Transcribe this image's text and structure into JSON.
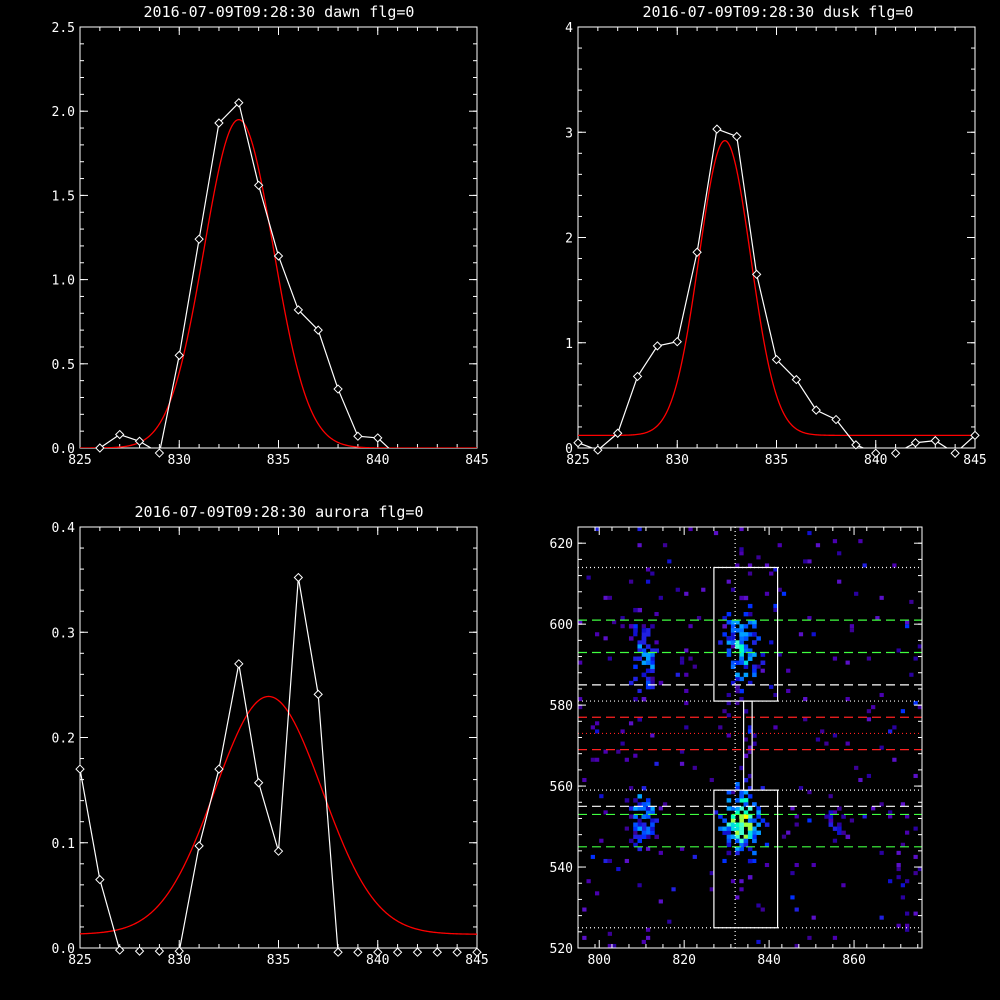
{
  "chart_data": [
    {
      "type": "line",
      "title": "2016-07-09T09:28:30 dawn flg=0",
      "xlim": [
        825,
        845
      ],
      "ylim": [
        0,
        2.5
      ],
      "xticks": [
        "825",
        "830",
        "835",
        "840",
        "845"
      ],
      "yticks": [
        "0.0",
        "0.5",
        "1.0",
        "1.5",
        "2.0",
        "2.5"
      ],
      "series": [
        {
          "style": "data",
          "color": "#ffffff",
          "x": [
            825,
            826,
            827,
            828,
            829,
            830,
            831,
            832,
            833,
            834,
            835,
            836,
            837,
            838,
            839,
            840,
            841,
            842,
            843,
            844,
            845
          ],
          "y": [
            -0.05,
            0.0,
            0.08,
            0.04,
            -0.03,
            0.55,
            1.24,
            1.93,
            2.05,
            1.56,
            1.14,
            0.82,
            0.7,
            0.35,
            0.07,
            0.06,
            -0.05,
            -0.08,
            -0.1,
            -0.05,
            -0.1
          ]
        },
        {
          "style": "fit",
          "color": "#ff0000",
          "model": "gaussian",
          "amplitude": 1.95,
          "center": 833.0,
          "sigma": 1.75,
          "baseline": 0.0
        }
      ]
    },
    {
      "type": "line",
      "title": "2016-07-09T09:28:30 dusk flg=0",
      "xlim": [
        825,
        845
      ],
      "ylim": [
        0,
        4
      ],
      "xticks": [
        "825",
        "830",
        "835",
        "840",
        "845"
      ],
      "yticks": [
        "0",
        "1",
        "2",
        "3",
        "4"
      ],
      "series": [
        {
          "style": "data",
          "color": "#ffffff",
          "x": [
            825,
            826,
            827,
            828,
            829,
            830,
            831,
            832,
            833,
            834,
            835,
            836,
            837,
            838,
            839,
            840,
            841,
            842,
            843,
            844,
            845
          ],
          "y": [
            0.05,
            -0.02,
            0.14,
            0.68,
            0.97,
            1.01,
            1.86,
            3.03,
            2.96,
            1.65,
            0.84,
            0.65,
            0.36,
            0.27,
            0.03,
            -0.05,
            -0.05,
            0.05,
            0.07,
            -0.05,
            0.12
          ]
        },
        {
          "style": "fit",
          "color": "#ff0000",
          "model": "gaussian",
          "amplitude": 2.8,
          "center": 832.4,
          "sigma": 1.3,
          "baseline": 0.12
        }
      ]
    },
    {
      "type": "line",
      "title": "2016-07-09T09:28:30 aurora flg=0",
      "xlim": [
        825,
        845
      ],
      "ylim": [
        0,
        0.4
      ],
      "xticks": [
        "825",
        "830",
        "835",
        "840",
        "845"
      ],
      "yticks": [
        "0.0",
        "0.1",
        "0.2",
        "0.3",
        "0.4"
      ],
      "series": [
        {
          "style": "data",
          "color": "#ffffff",
          "x": [
            825,
            826,
            827,
            828,
            829,
            830,
            831,
            832,
            833,
            834,
            835,
            836,
            837,
            838,
            839,
            840,
            841,
            842,
            843,
            844,
            845
          ],
          "y": [
            0.17,
            0.065,
            -0.002,
            -0.003,
            -0.003,
            -0.003,
            0.097,
            0.17,
            0.27,
            0.157,
            0.092,
            0.352,
            0.241,
            -0.004,
            -0.004,
            -0.004,
            -0.004,
            -0.004,
            -0.004,
            -0.004,
            -0.004
          ]
        },
        {
          "style": "fit",
          "color": "#ff0000",
          "model": "gaussian",
          "amplitude": 0.226,
          "center": 834.5,
          "sigma": 2.7,
          "baseline": 0.013
        }
      ]
    },
    {
      "type": "heatmap",
      "title": "",
      "xlim": [
        795,
        876
      ],
      "ylim": [
        520,
        624
      ],
      "xticks": [
        "800",
        "820",
        "840",
        "860"
      ],
      "yticks": [
        "520",
        "540",
        "560",
        "580",
        "600",
        "620"
      ],
      "clusters": [
        {
          "cx": 833,
          "cy": 594,
          "rx": 4,
          "ry": 9,
          "count": 95,
          "peak": 0.75
        },
        {
          "cx": 833,
          "cy": 551,
          "rx": 4,
          "ry": 8,
          "count": 110,
          "peak": 0.95
        },
        {
          "cx": 810,
          "cy": 591,
          "rx": 3,
          "ry": 9,
          "count": 55,
          "peak": 0.55
        },
        {
          "cx": 810,
          "cy": 552,
          "rx": 3,
          "ry": 6,
          "count": 55,
          "peak": 0.65
        },
        {
          "cx": 855,
          "cy": 550,
          "rx": 2,
          "ry": 4,
          "count": 14,
          "peak": 0.35
        },
        {
          "cx": 835,
          "cy": 568,
          "rx": 1,
          "ry": 8,
          "count": 10,
          "peak": 0.25
        }
      ],
      "scatter_fraction": 0.028,
      "boxes": [
        {
          "x0": 827,
          "x1": 842,
          "y0": 581,
          "y1": 614
        },
        {
          "x0": 827,
          "x1": 842,
          "y0": 525,
          "y1": 559
        },
        {
          "x0": 834,
          "x1": 836,
          "y0": 559,
          "y1": 581
        }
      ],
      "vline_dotted": 832,
      "hlines_dotted_white": [
        614,
        581,
        559,
        525
      ],
      "hline_dotted_red": 573,
      "hlines_dashed_green": [
        601,
        593,
        553,
        545
      ],
      "hlines_dashed_white": [
        585,
        555
      ],
      "hlines_dashed_red": [
        577,
        569
      ]
    }
  ]
}
